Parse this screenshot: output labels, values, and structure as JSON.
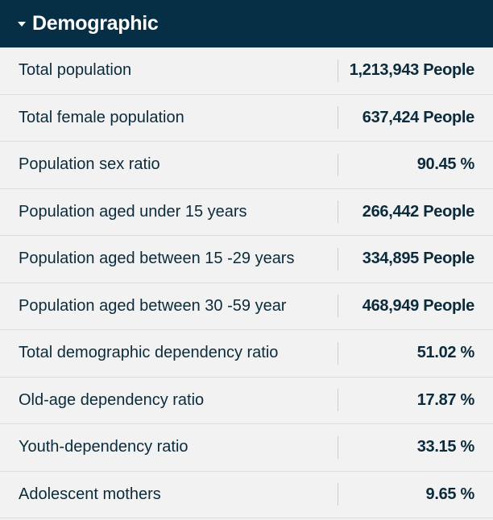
{
  "section": {
    "title": "Demographic",
    "toggle_icon": "caret-down-icon"
  },
  "colors": {
    "header_bg": "#062f45",
    "row_bg": "#f2f2f2",
    "text": "#0b2b3c"
  },
  "rows": [
    {
      "label": "Total population",
      "value": "1,213,943 People"
    },
    {
      "label": "Total female population",
      "value": "637,424 People"
    },
    {
      "label": "Population sex ratio",
      "value": "90.45 %"
    },
    {
      "label": "Population aged under 15 years",
      "value": "266,442 People"
    },
    {
      "label": "Population aged between 15 -29 years",
      "value": "334,895 People"
    },
    {
      "label": "Population aged between 30 -59 year",
      "value": "468,949 People"
    },
    {
      "label": "Total demographic dependency ratio",
      "value": "51.02 %"
    },
    {
      "label": "Old-age dependency ratio",
      "value": "17.87 %"
    },
    {
      "label": "Youth-dependency ratio",
      "value": "33.15 %"
    },
    {
      "label": "Adolescent mothers",
      "value": "9.65 %"
    }
  ]
}
